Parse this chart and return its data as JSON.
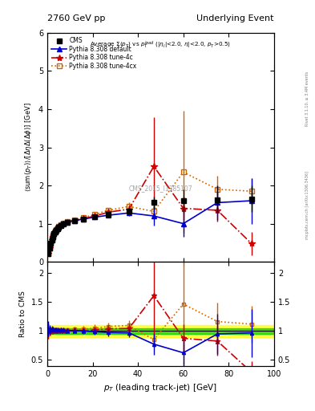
{
  "title_left": "2760 GeV pp",
  "title_right": "Underlying Event",
  "ylabel_main": "$\\langle$sum$(p_T)\\rangle$/$[\\Delta\\eta\\Delta(\\Delta\\phi)]$ [GeV]",
  "ylabel_ratio": "Ratio to CMS",
  "xlabel": "$p_T$ (leading track-jet) [GeV]",
  "watermark": "CMS_2015_I1385107",
  "right_label_top": "Rivet 3.1.10, ≥ 3.4M events",
  "right_label_bottom": "mcplots.cern.ch [arXiv:1306.3436]",
  "xlim": [
    0,
    100
  ],
  "ylim_main": [
    0,
    6
  ],
  "ylim_ratio": [
    0.4,
    2.2
  ],
  "cms_x": [
    0.5,
    1.0,
    1.5,
    2.0,
    2.5,
    3.0,
    3.5,
    4.0,
    4.5,
    5.0,
    6.0,
    7.0,
    9.0,
    12.0,
    16.0,
    21.0,
    27.0,
    36.0,
    47.0,
    60.0,
    75.0,
    90.0
  ],
  "cms_y": [
    0.22,
    0.35,
    0.48,
    0.58,
    0.66,
    0.73,
    0.79,
    0.83,
    0.87,
    0.9,
    0.95,
    0.99,
    1.03,
    1.07,
    1.12,
    1.18,
    1.25,
    1.32,
    1.55,
    1.6,
    1.63,
    1.65
  ],
  "cms_yerr": [
    0.02,
    0.02,
    0.02,
    0.02,
    0.02,
    0.02,
    0.02,
    0.02,
    0.02,
    0.02,
    0.03,
    0.03,
    0.03,
    0.03,
    0.04,
    0.05,
    0.05,
    0.06,
    0.15,
    0.3,
    0.35,
    0.35
  ],
  "def_x": [
    0.5,
    1.0,
    1.5,
    2.0,
    2.5,
    3.0,
    3.5,
    4.0,
    4.5,
    5.0,
    6.0,
    7.0,
    9.0,
    12.0,
    16.0,
    21.0,
    27.0,
    36.0,
    47.0,
    60.0,
    75.0,
    90.0
  ],
  "def_y": [
    0.23,
    0.36,
    0.49,
    0.6,
    0.68,
    0.75,
    0.81,
    0.85,
    0.89,
    0.92,
    0.97,
    1.01,
    1.04,
    1.08,
    1.12,
    1.17,
    1.22,
    1.28,
    1.2,
    1.0,
    1.55,
    1.6
  ],
  "def_yerr": [
    0.02,
    0.02,
    0.02,
    0.02,
    0.02,
    0.02,
    0.02,
    0.02,
    0.02,
    0.02,
    0.03,
    0.03,
    0.03,
    0.04,
    0.04,
    0.05,
    0.06,
    0.08,
    0.25,
    0.35,
    0.45,
    0.6
  ],
  "tune4c_x": [
    0.5,
    1.0,
    1.5,
    2.0,
    2.5,
    3.0,
    3.5,
    4.0,
    4.5,
    5.0,
    6.0,
    7.0,
    9.0,
    12.0,
    16.0,
    21.0,
    27.0,
    36.0,
    47.0,
    60.0,
    75.0,
    90.0
  ],
  "tune4c_y": [
    0.22,
    0.35,
    0.48,
    0.58,
    0.66,
    0.73,
    0.8,
    0.84,
    0.88,
    0.91,
    0.96,
    1.0,
    1.04,
    1.08,
    1.13,
    1.2,
    1.3,
    1.38,
    2.5,
    1.4,
    1.35,
    0.48
  ],
  "tune4c_yerr": [
    0.02,
    0.02,
    0.02,
    0.02,
    0.02,
    0.02,
    0.02,
    0.02,
    0.02,
    0.02,
    0.03,
    0.03,
    0.03,
    0.04,
    0.04,
    0.05,
    0.06,
    0.1,
    1.3,
    0.3,
    0.3,
    0.3
  ],
  "tune4cx_x": [
    0.5,
    1.0,
    1.5,
    2.0,
    2.5,
    3.0,
    3.5,
    4.0,
    4.5,
    5.0,
    6.0,
    7.0,
    9.0,
    12.0,
    16.0,
    21.0,
    27.0,
    36.0,
    47.0,
    60.0,
    75.0,
    90.0
  ],
  "tune4cx_y": [
    0.22,
    0.35,
    0.49,
    0.59,
    0.67,
    0.74,
    0.81,
    0.85,
    0.89,
    0.92,
    0.97,
    1.01,
    1.05,
    1.1,
    1.16,
    1.24,
    1.35,
    1.45,
    1.32,
    2.35,
    1.9,
    1.85
  ],
  "tune4cx_yerr": [
    0.02,
    0.02,
    0.02,
    0.02,
    0.02,
    0.02,
    0.02,
    0.02,
    0.02,
    0.02,
    0.03,
    0.03,
    0.03,
    0.04,
    0.04,
    0.05,
    0.06,
    0.1,
    0.15,
    1.6,
    0.35,
    0.35
  ],
  "color_cms": "#000000",
  "color_default": "#0000cc",
  "color_tune4c": "#cc0000",
  "color_tune4cx": "#cc6600",
  "ratio_band_green": 0.05,
  "ratio_band_yellow": 0.1
}
